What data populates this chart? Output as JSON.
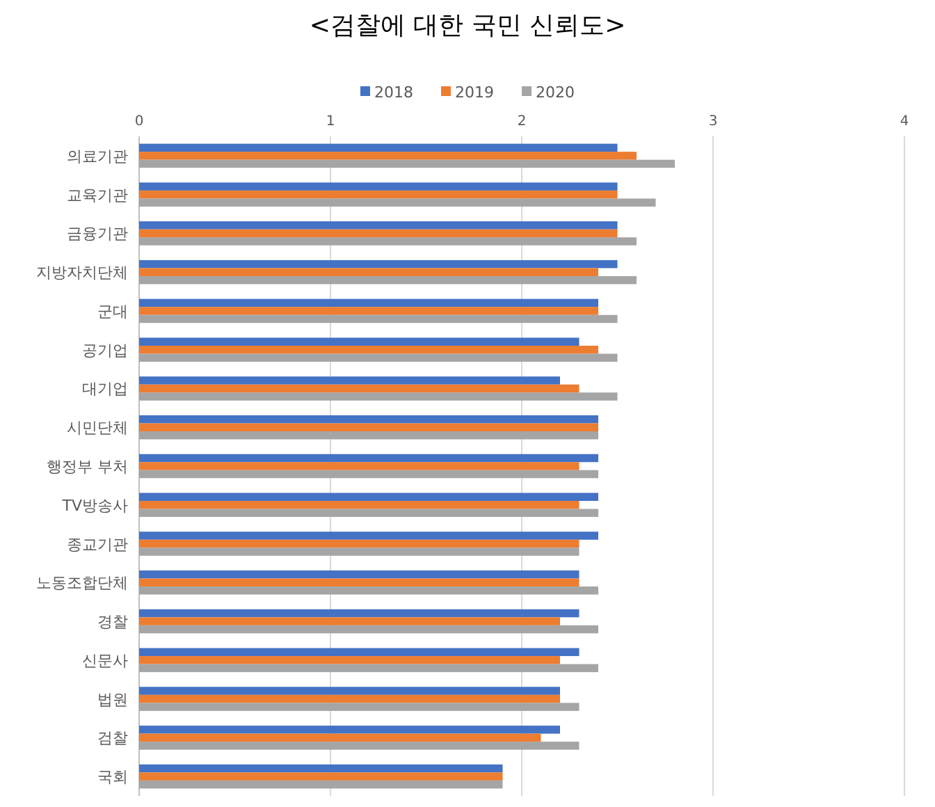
{
  "chart_data": {
    "type": "bar",
    "orientation": "horizontal",
    "title": "<검찰에 대한 국민 신뢰도>",
    "categories": [
      "의료기관",
      "교육기관",
      "금융기관",
      "지방자치단체",
      "군대",
      "공기업",
      "대기업",
      "시민단체",
      "행정부 부처",
      "TV방송사",
      "종교기관",
      "노동조합단체",
      "경찰",
      "신문사",
      "법원",
      "검찰",
      "국회"
    ],
    "series": [
      {
        "name": "2018",
        "color": "#4472c4",
        "values": [
          2.5,
          2.5,
          2.5,
          2.5,
          2.4,
          2.3,
          2.2,
          2.4,
          2.4,
          2.4,
          2.4,
          2.3,
          2.3,
          2.3,
          2.2,
          2.2,
          1.9
        ]
      },
      {
        "name": "2019",
        "color": "#ed7d31",
        "values": [
          2.6,
          2.5,
          2.5,
          2.4,
          2.4,
          2.4,
          2.3,
          2.4,
          2.3,
          2.3,
          2.3,
          2.3,
          2.2,
          2.2,
          2.2,
          2.1,
          1.9
        ]
      },
      {
        "name": "2020",
        "color": "#a5a5a5",
        "values": [
          2.8,
          2.7,
          2.6,
          2.6,
          2.5,
          2.5,
          2.5,
          2.4,
          2.4,
          2.4,
          2.3,
          2.4,
          2.4,
          2.4,
          2.3,
          2.3,
          1.9
        ]
      }
    ],
    "xlim": [
      0,
      4
    ],
    "xticks": [
      0,
      1,
      2,
      3,
      4
    ],
    "grid": "x",
    "legend": "top"
  }
}
